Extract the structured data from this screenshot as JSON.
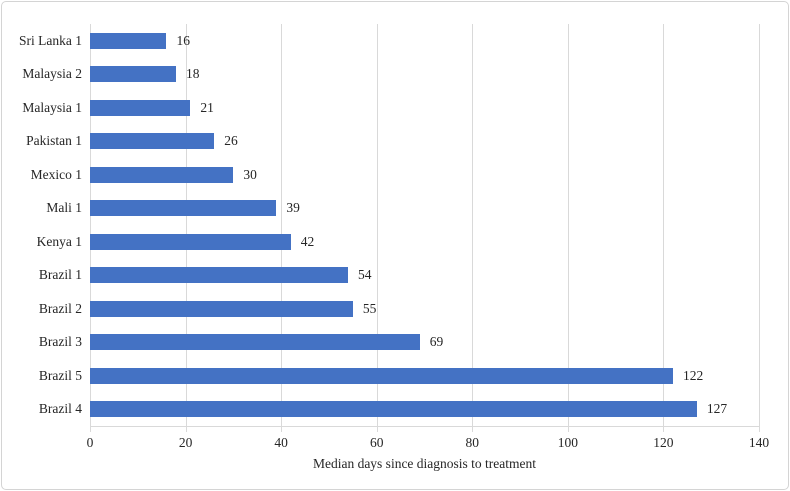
{
  "chart_data": {
    "type": "bar",
    "orientation": "horizontal",
    "categories": [
      "Sri Lanka 1",
      "Malaysia 2",
      "Malaysia 1",
      "Pakistan 1",
      "Mexico 1",
      "Mali 1",
      "Kenya 1",
      "Brazil 1",
      "Brazil 2",
      "Brazil 3",
      "Brazil 5",
      "Brazil 4"
    ],
    "values": [
      16,
      18,
      21,
      26,
      30,
      39,
      42,
      54,
      55,
      69,
      122,
      127
    ],
    "data_labels": [
      16,
      18,
      21,
      26,
      30,
      39,
      42,
      54,
      55,
      69,
      122,
      127
    ],
    "title": "",
    "xlabel": "Median days since diagnosis to treatment",
    "ylabel": "",
    "xlim": [
      0,
      140
    ],
    "xticks": [
      0,
      20,
      40,
      60,
      80,
      100,
      120,
      140
    ],
    "grid": "vertical",
    "legend": "none",
    "bar_color": "#4472c4",
    "gridline_color": "#d9d9d9",
    "text_color": "#262626"
  }
}
